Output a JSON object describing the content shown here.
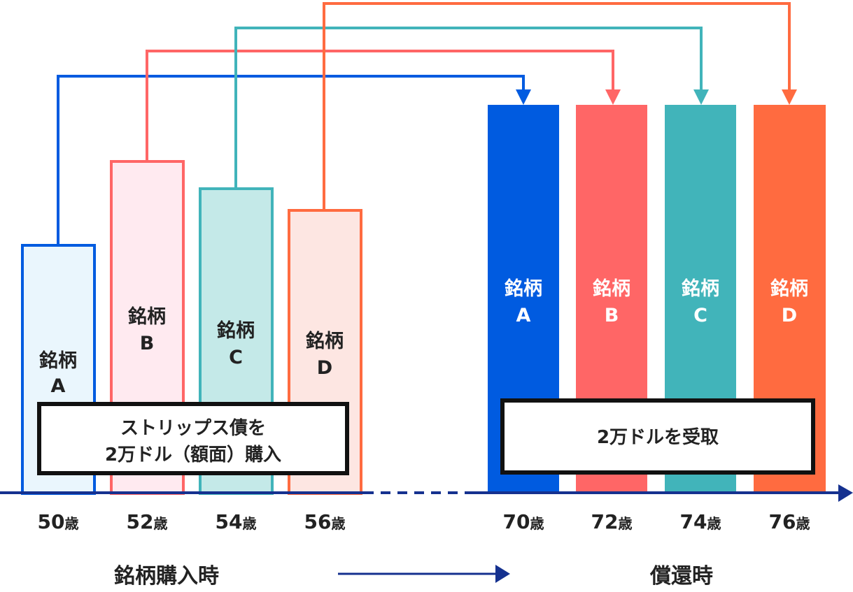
{
  "colors": {
    "a": "#005BE0",
    "b": "#FF6666",
    "c": "#41B4BA",
    "d": "#FF6B40",
    "a_light": "#EAF6FD",
    "b_light": "#FFEAF0",
    "c_light": "#C4E9E8",
    "d_light": "#FDE6E2",
    "axis": "#15318F"
  },
  "purchase": {
    "bonds": [
      {
        "line1": "銘柄",
        "line2": "A",
        "age": "50",
        "unit": "歳"
      },
      {
        "line1": "銘柄",
        "line2": "B",
        "age": "52",
        "unit": "歳"
      },
      {
        "line1": "銘柄",
        "line2": "C",
        "age": "54",
        "unit": "歳"
      },
      {
        "line1": "銘柄",
        "line2": "D",
        "age": "56",
        "unit": "歳"
      }
    ],
    "box_line1": "ストリップス債を",
    "box_line2": "2万ドル（額面）購入",
    "title": "銘柄購入時"
  },
  "redemption": {
    "bonds": [
      {
        "line1": "銘柄",
        "line2": "A",
        "age": "70",
        "unit": "歳"
      },
      {
        "line1": "銘柄",
        "line2": "B",
        "age": "72",
        "unit": "歳"
      },
      {
        "line1": "銘柄",
        "line2": "C",
        "age": "74",
        "unit": "歳"
      },
      {
        "line1": "銘柄",
        "line2": "D",
        "age": "76",
        "unit": "歳"
      }
    ],
    "box_text": "2万ドルを受取",
    "title": "償還時"
  }
}
